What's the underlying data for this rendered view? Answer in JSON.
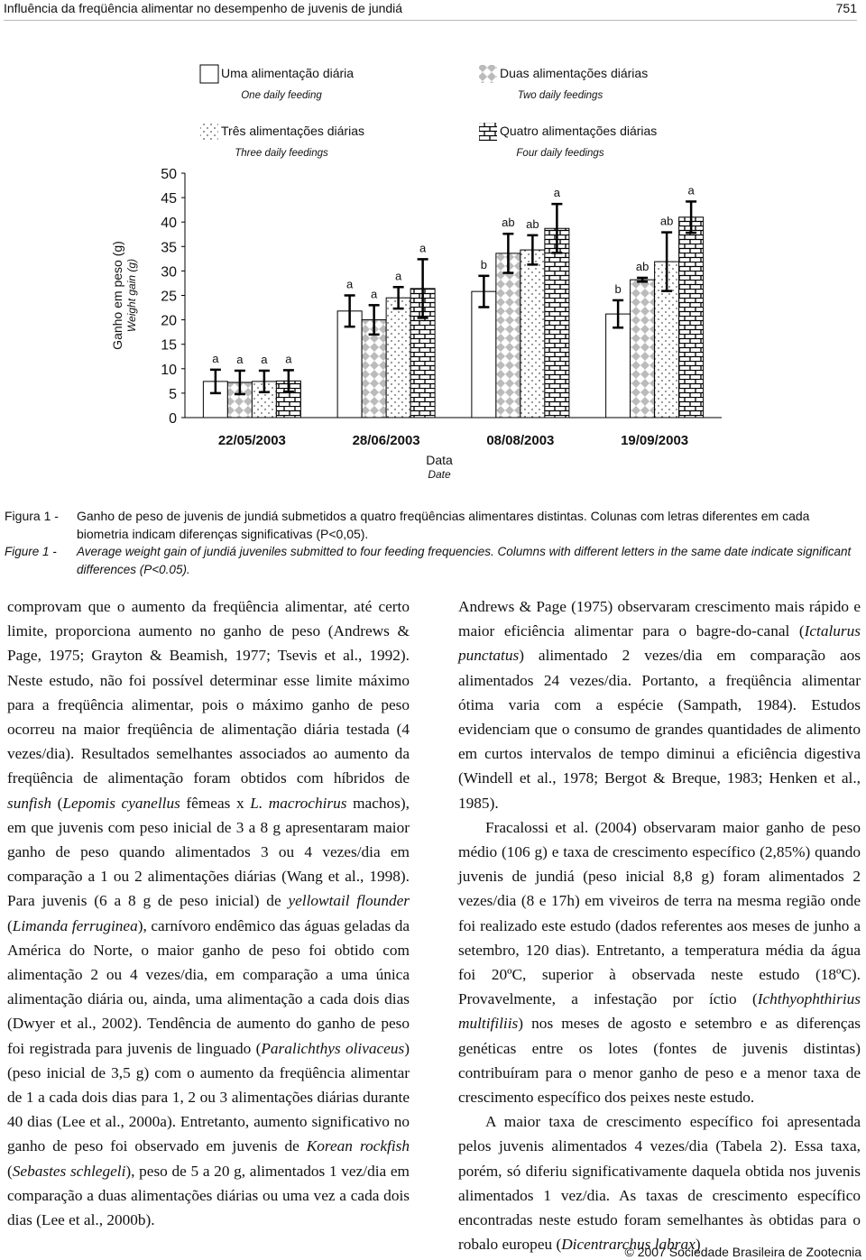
{
  "header": {
    "title": "Influência da freqüência alimentar no desempenho de juvenis de jundiá",
    "page": "751"
  },
  "chart_data": {
    "type": "bar",
    "ylabel": "Ganho em peso (g)",
    "ylabel_en": "Weight gain (g)",
    "xlabel": "Data",
    "xlabel_en": "Date",
    "categories": [
      "22/05/2003",
      "28/06/2003",
      "08/08/2003",
      "19/09/2003"
    ],
    "ylim": [
      0,
      50
    ],
    "yticks": [
      0,
      5,
      10,
      15,
      20,
      25,
      30,
      35,
      40,
      45,
      50
    ],
    "grid": false,
    "series": [
      {
        "name": "Uma alimentação diária",
        "name_en": "One daily feeding",
        "pattern": "none",
        "color": "#000000",
        "values": [
          7.4,
          21.8,
          25.8,
          21.2
        ],
        "errors": [
          2.4,
          3.2,
          3.2,
          2.8
        ],
        "letters": [
          "a",
          "a",
          "b",
          "b"
        ]
      },
      {
        "name": "Duas alimentações diárias",
        "name_en": "Two daily feedings",
        "pattern": "checker",
        "color": "#000000",
        "values": [
          7.2,
          20.0,
          33.6,
          28.2
        ],
        "errors": [
          2.4,
          3.0,
          4.0,
          0.4
        ],
        "letters": [
          "a",
          "a",
          "ab",
          "ab"
        ]
      },
      {
        "name": "Três alimentações diárias",
        "name_en": "Three daily feedings",
        "pattern": "dots",
        "color": "#000000",
        "values": [
          7.4,
          24.5,
          34.3,
          31.9
        ],
        "errors": [
          2.2,
          2.2,
          3.0,
          6.0
        ],
        "letters": [
          "a",
          "a",
          "ab",
          "ab"
        ]
      },
      {
        "name": "Quatro alimentações diárias",
        "name_en": "Four daily feedings",
        "pattern": "brick",
        "color": "#000000",
        "values": [
          7.5,
          26.4,
          38.7,
          41.0
        ],
        "errors": [
          2.2,
          6.0,
          5.0,
          3.2
        ],
        "letters": [
          "a",
          "a",
          "a",
          "a"
        ]
      }
    ]
  },
  "caption": {
    "pt": {
      "label": "Figura 1 -",
      "text": "Ganho de peso de juvenis de jundiá submetidos a quatro freqüências alimentares distintas. Colunas com letras diferentes em cada biometria indicam diferenças significativas (P<0,05)."
    },
    "en": {
      "label": "Figure 1 -",
      "text": "Average weight gain of jundiá juveniles submitted to four feeding frequencies. Columns with different letters in the same date indicate significant differences (P<0.05)."
    }
  },
  "body": {
    "columns": [
      [
        [
          "comprovam que o aumento da freqüência alimentar, até certo limite, proporciona aumento no ganho de peso (Andrews & Page, 1975; Grayton & Beamish, 1977; Tsevis et al., 1992). Neste estudo, não foi possível determinar esse limite máximo para a freqüência alimentar, pois o máximo ganho de peso ocorreu na maior freqüência de alimentação diária testada (4 vezes/dia). Resultados semelhantes associados ao aumento da freqüência de alimentação foram obtidos com híbridos de ",
          "sunfish",
          " (",
          "Lepomis cyanellus",
          " fêmeas x ",
          "L. macrochirus",
          " machos), em que juvenis com peso inicial de 3 a 8 g apresentaram maior ganho de peso quando alimentados 3 ou 4 vezes/dia em comparação a 1 ou 2 alimentações diárias (Wang et al., 1998). Para juvenis (6 a 8 g de peso inicial) de ",
          "yellowtail flounder",
          " (",
          "Limanda ferruginea",
          "), carnívoro endêmico das águas geladas da América do Norte, o maior ganho de peso foi obtido com alimentação 2 ou 4 vezes/dia, em comparação a uma única alimentação diária ou, ainda, uma alimentação a cada dois dias (Dwyer et al., 2002). Tendência de aumento do ganho de peso foi registrada para juvenis de linguado (",
          "Paralichthys olivaceus",
          ") (peso inicial de 3,5 g) com o aumento da freqüência alimentar de 1 a cada dois dias para 1, 2 ou 3 alimentações diárias durante 40 dias (Lee et al., 2000a). Entretanto, aumento significativo no ganho de peso foi observado em juvenis de ",
          "Korean rockfish",
          " (",
          "Sebastes schlegeli",
          "), peso de 5 a 20 g, alimentados 1 vez/dia em comparação a duas alimentações diárias ou uma vez a cada dois dias (Lee et al., 2000b)."
        ]
      ],
      [
        [
          "Andrews & Page (1975) observaram crescimento mais rápido e maior eficiência alimentar para o bagre-do-canal (",
          "Ictalurus punctatus",
          ") alimentado 2 vezes/dia em comparação aos alimentados 24 vezes/dia. Portanto, a freqüência alimentar ótima varia com a espécie (Sampath, 1984). Estudos evidenciam que o consumo de grandes quantidades de alimento em curtos intervalos de tempo diminui a eficiência digestiva (Windell et al., 1978; Bergot & Breque, 1983; Henken et al., 1985)."
        ],
        [
          "Fracalossi et al. (2004) observaram maior ganho de peso médio (106 g) e taxa de crescimento específico (2,85%) quando juvenis de jundiá (peso inicial 8,8 g) foram alimentados 2 vezes/dia (8 e 17h) em viveiros de terra na mesma região onde foi realizado este estudo (dados referentes aos meses de junho a setembro, 120 dias). Entretanto, a temperatura média da água foi 20ºC, superior à observada neste estudo (18ºC). Provavelmente, a infestação por íctio (",
          "Ichthyophthirius multifiliis",
          ") nos meses de agosto e setembro e as diferenças genéticas entre os lotes (fontes de juvenis distintas) contribuíram para o menor ganho de peso e a menor taxa de crescimento específico dos peixes neste estudo."
        ],
        [
          "A maior taxa de crescimento específico foi apresentada pelos juvenis alimentados 4 vezes/dia (Tabela 2). Essa taxa, porém, só diferiu significativamente daquela obtida nos juvenis alimentados 1 vez/dia. As taxas de crescimento específico encontradas neste estudo foram semelhantes às obtidas para o robalo europeu (",
          "Dicentrarchus labrax",
          ")"
        ]
      ]
    ]
  },
  "footer": "© 2007 Sociedade Brasileira de Zootecnia"
}
